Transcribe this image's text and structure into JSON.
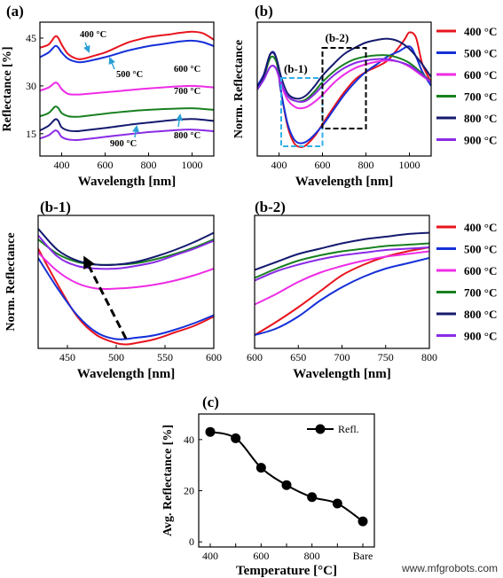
{
  "colors": {
    "c400": "#e8141e",
    "c500": "#1530d8",
    "c600": "#ee2ce6",
    "c700": "#188020",
    "c800": "#141a6e",
    "c900": "#8a2be6",
    "axis": "#000000",
    "box_b1": "#30b0e8",
    "box_b2": "#000000",
    "arrow_teal": "#2a9fd6"
  },
  "legend_entries": [
    "400 °C",
    "500 °C",
    "600 °C",
    "700 °C",
    "800 °C",
    "900 °C"
  ],
  "watermark": "www.mfgrobots.com",
  "chart_data": [
    {
      "panel": "a",
      "type": "line",
      "label": "(a)",
      "xlabel": "Wavelength [nm]",
      "ylabel": "Reflectance [%]",
      "xlim": [
        300,
        1100
      ],
      "ylim": [
        8,
        50
      ],
      "xticks": [
        400,
        600,
        800,
        1000
      ],
      "yticks": [
        15,
        30,
        45
      ],
      "annotations": [
        "400 °C",
        "500 °C",
        "600 °C",
        "700 °C",
        "800 °C",
        "900 °C"
      ],
      "series": [
        {
          "name": "400 °C",
          "color_key": "c400",
          "x": [
            300,
            340,
            370,
            385,
            400,
            430,
            470,
            500,
            550,
            600,
            650,
            700,
            750,
            800,
            850,
            900,
            950,
            1000,
            1050,
            1100
          ],
          "y": [
            42,
            43,
            45.5,
            45,
            43,
            40,
            38.5,
            38.5,
            39.5,
            40.5,
            42,
            43.5,
            44.5,
            45.3,
            45.8,
            46.2,
            46.7,
            47,
            46.5,
            44.5
          ]
        },
        {
          "name": "500 °C",
          "color_key": "c500",
          "x": [
            300,
            340,
            370,
            385,
            400,
            430,
            470,
            500,
            550,
            600,
            650,
            700,
            750,
            800,
            850,
            900,
            950,
            1000,
            1050,
            1100
          ],
          "y": [
            39,
            40.5,
            42.5,
            42,
            40.5,
            38.5,
            37.5,
            37.5,
            38.2,
            39,
            40,
            41,
            41.8,
            42.5,
            43,
            43.5,
            44,
            44.2,
            43.7,
            42.5
          ]
        },
        {
          "name": "600 °C",
          "color_key": "c600",
          "x": [
            300,
            340,
            370,
            385,
            400,
            430,
            470,
            500,
            600,
            700,
            800,
            900,
            1000,
            1100
          ],
          "y": [
            28.5,
            29.5,
            31,
            30.5,
            29,
            27.5,
            27.3,
            27.4,
            28,
            28.6,
            29.2,
            29.7,
            30,
            29.5
          ]
        },
        {
          "name": "700 °C",
          "color_key": "c700",
          "x": [
            300,
            340,
            370,
            385,
            400,
            430,
            470,
            500,
            600,
            700,
            800,
            900,
            1000,
            1100
          ],
          "y": [
            20.5,
            21.5,
            23.5,
            23,
            21.5,
            20.5,
            20.3,
            20.5,
            21.3,
            22,
            22.5,
            22.8,
            23,
            22.5
          ]
        },
        {
          "name": "800 °C",
          "color_key": "c800",
          "x": [
            300,
            340,
            370,
            385,
            400,
            430,
            470,
            500,
            600,
            700,
            800,
            900,
            1000,
            1100
          ],
          "y": [
            16,
            17.5,
            19.5,
            19,
            17,
            16,
            15.8,
            16,
            16.8,
            17.7,
            18.5,
            19.2,
            19.6,
            19
          ]
        },
        {
          "name": "900 °C",
          "color_key": "c900",
          "x": [
            300,
            340,
            370,
            385,
            400,
            430,
            470,
            500,
            600,
            700,
            800,
            900,
            1000,
            1100
          ],
          "y": [
            13.5,
            14.5,
            16,
            15.5,
            14,
            13.2,
            13,
            13.2,
            14,
            14.8,
            15.5,
            16,
            16.3,
            15.8
          ]
        }
      ]
    },
    {
      "panel": "b",
      "type": "line",
      "label": "(b)",
      "xlabel": "Wavelength [nm]",
      "ylabel": "Norm. Reflectance",
      "xlim": [
        300,
        1100
      ],
      "ylim": [
        0,
        1.05
      ],
      "xticks": [
        400,
        600,
        800,
        1000
      ],
      "box_labels": [
        "(b-1)",
        "(b-2)"
      ],
      "series": [
        {
          "name": "400 °C",
          "x": [
            300,
            330,
            360,
            385,
            410,
            440,
            470,
            500,
            520,
            540,
            570,
            600,
            650,
            700,
            750,
            800,
            850,
            900,
            950,
            980,
            1000,
            1030,
            1060,
            1100
          ],
          "y": [
            0.55,
            0.64,
            0.8,
            0.78,
            0.5,
            0.23,
            0.1,
            0.07,
            0.08,
            0.11,
            0.17,
            0.25,
            0.38,
            0.5,
            0.6,
            0.66,
            0.7,
            0.75,
            0.85,
            0.92,
            0.97,
            0.93,
            0.72,
            0.58
          ]
        },
        {
          "name": "500 °C",
          "x": [
            300,
            330,
            360,
            385,
            410,
            440,
            470,
            500,
            540,
            600,
            650,
            700,
            750,
            800,
            850,
            900,
            950,
            1000,
            1030,
            1060,
            1100
          ],
          "y": [
            0.55,
            0.64,
            0.8,
            0.78,
            0.5,
            0.25,
            0.13,
            0.1,
            0.13,
            0.24,
            0.36,
            0.48,
            0.58,
            0.66,
            0.72,
            0.78,
            0.82,
            0.86,
            0.78,
            0.66,
            0.55
          ]
        },
        {
          "name": "600 °C",
          "x": [
            300,
            330,
            360,
            385,
            410,
            440,
            480,
            520,
            560,
            600,
            650,
            700,
            750,
            800,
            850,
            900,
            950,
            1000,
            1050,
            1100
          ],
          "y": [
            0.53,
            0.6,
            0.7,
            0.69,
            0.56,
            0.44,
            0.38,
            0.38,
            0.42,
            0.48,
            0.57,
            0.64,
            0.69,
            0.72,
            0.74,
            0.75,
            0.74,
            0.7,
            0.64,
            0.58
          ]
        },
        {
          "name": "700 °C",
          "x": [
            300,
            330,
            360,
            385,
            410,
            440,
            480,
            520,
            560,
            600,
            650,
            700,
            750,
            800,
            850,
            900,
            950,
            1000,
            1050,
            1100
          ],
          "y": [
            0.53,
            0.62,
            0.77,
            0.75,
            0.6,
            0.47,
            0.43,
            0.44,
            0.5,
            0.58,
            0.66,
            0.72,
            0.76,
            0.78,
            0.79,
            0.79,
            0.77,
            0.73,
            0.66,
            0.58
          ]
        },
        {
          "name": "800 °C",
          "x": [
            300,
            330,
            360,
            385,
            410,
            440,
            480,
            520,
            560,
            600,
            650,
            700,
            750,
            800,
            850,
            900,
            950,
            1000,
            1050,
            1100
          ],
          "y": [
            0.53,
            0.63,
            0.8,
            0.78,
            0.62,
            0.49,
            0.45,
            0.47,
            0.54,
            0.63,
            0.72,
            0.8,
            0.85,
            0.89,
            0.91,
            0.92,
            0.9,
            0.84,
            0.74,
            0.62
          ]
        },
        {
          "name": "900 °C",
          "x": [
            300,
            330,
            360,
            385,
            410,
            440,
            480,
            520,
            560,
            600,
            650,
            700,
            750,
            800,
            850,
            900,
            950,
            1000,
            1050,
            1100
          ],
          "y": [
            0.52,
            0.6,
            0.7,
            0.69,
            0.58,
            0.47,
            0.43,
            0.43,
            0.48,
            0.55,
            0.63,
            0.69,
            0.73,
            0.75,
            0.76,
            0.76,
            0.74,
            0.71,
            0.65,
            0.58
          ]
        }
      ]
    },
    {
      "panel": "b-1",
      "type": "line",
      "label": "(b-1)",
      "xlabel": "Wavelength [nm]",
      "ylabel": "Norm. Reflectance",
      "xlim": [
        420,
        600
      ],
      "ylim": [
        0,
        1
      ],
      "xticks": [
        450,
        500,
        550,
        600
      ],
      "series": [
        {
          "name": "400 °C",
          "x": [
            420,
            440,
            460,
            480,
            500,
            510,
            520,
            540,
            560,
            580,
            600
          ],
          "y": [
            0.75,
            0.48,
            0.24,
            0.1,
            0.04,
            0.03,
            0.04,
            0.07,
            0.12,
            0.17,
            0.24
          ]
        },
        {
          "name": "500 °C",
          "x": [
            420,
            440,
            460,
            480,
            500,
            520,
            540,
            560,
            580,
            600
          ],
          "y": [
            0.68,
            0.45,
            0.25,
            0.12,
            0.07,
            0.08,
            0.1,
            0.14,
            0.19,
            0.25
          ]
        },
        {
          "name": "600 °C",
          "x": [
            420,
            440,
            460,
            480,
            500,
            520,
            540,
            560,
            580,
            600
          ],
          "y": [
            0.72,
            0.58,
            0.49,
            0.45,
            0.45,
            0.46,
            0.48,
            0.51,
            0.55,
            0.6
          ]
        },
        {
          "name": "700 °C",
          "x": [
            420,
            440,
            460,
            480,
            500,
            520,
            540,
            560,
            580,
            600
          ],
          "y": [
            0.82,
            0.71,
            0.65,
            0.63,
            0.63,
            0.64,
            0.67,
            0.71,
            0.76,
            0.82
          ]
        },
        {
          "name": "800 °C",
          "x": [
            420,
            440,
            460,
            480,
            500,
            520,
            540,
            560,
            580,
            600
          ],
          "y": [
            0.9,
            0.74,
            0.66,
            0.63,
            0.63,
            0.65,
            0.69,
            0.74,
            0.8,
            0.87
          ]
        },
        {
          "name": "900 °C",
          "x": [
            420,
            440,
            460,
            480,
            500,
            520,
            540,
            560,
            580,
            600
          ],
          "y": [
            0.85,
            0.69,
            0.62,
            0.6,
            0.6,
            0.62,
            0.65,
            0.7,
            0.75,
            0.81
          ]
        }
      ]
    },
    {
      "panel": "b-2",
      "type": "line",
      "label": "(b-2)",
      "xlabel": "Wavelength [nm]",
      "xlim": [
        600,
        800
      ],
      "ylim": [
        0,
        1
      ],
      "xticks": [
        600,
        650,
        700,
        750,
        800
      ],
      "series": [
        {
          "name": "400 °C",
          "x": [
            600,
            625,
            650,
            675,
            700,
            725,
            750,
            775,
            800
          ],
          "y": [
            0.1,
            0.2,
            0.31,
            0.43,
            0.55,
            0.63,
            0.69,
            0.73,
            0.76
          ]
        },
        {
          "name": "500 °C",
          "x": [
            600,
            625,
            650,
            675,
            700,
            725,
            750,
            775,
            800
          ],
          "y": [
            0.1,
            0.15,
            0.24,
            0.36,
            0.46,
            0.54,
            0.6,
            0.64,
            0.68
          ]
        },
        {
          "name": "600 °C",
          "x": [
            600,
            625,
            650,
            675,
            700,
            725,
            750,
            775,
            800
          ],
          "y": [
            0.33,
            0.41,
            0.5,
            0.57,
            0.62,
            0.66,
            0.69,
            0.71,
            0.73
          ]
        },
        {
          "name": "700 °C",
          "x": [
            600,
            625,
            650,
            675,
            700,
            725,
            750,
            775,
            800
          ],
          "y": [
            0.53,
            0.6,
            0.66,
            0.7,
            0.73,
            0.75,
            0.77,
            0.78,
            0.79
          ]
        },
        {
          "name": "800 °C",
          "x": [
            600,
            625,
            650,
            675,
            700,
            725,
            750,
            775,
            800
          ],
          "y": [
            0.59,
            0.65,
            0.71,
            0.75,
            0.79,
            0.82,
            0.84,
            0.86,
            0.87
          ]
        },
        {
          "name": "900 °C",
          "x": [
            600,
            625,
            650,
            675,
            700,
            725,
            750,
            775,
            800
          ],
          "y": [
            0.51,
            0.58,
            0.63,
            0.67,
            0.7,
            0.72,
            0.74,
            0.75,
            0.76
          ]
        }
      ]
    },
    {
      "panel": "c",
      "type": "line",
      "label": "(c)",
      "xlabel": "Temperature [°C]",
      "ylabel": "Avg. Reflectance [%]",
      "categories": [
        "400",
        "500",
        "600",
        "700",
        "800",
        "900",
        "Bare"
      ],
      "xticklabels": [
        "400",
        "600",
        "800",
        "Bare"
      ],
      "ylim": [
        -2,
        50
      ],
      "yticks": [
        0,
        20,
        40
      ],
      "series": [
        {
          "name": "Refl.",
          "values": [
            43,
            40.5,
            29,
            22.2,
            17.5,
            15,
            8
          ]
        }
      ]
    }
  ]
}
